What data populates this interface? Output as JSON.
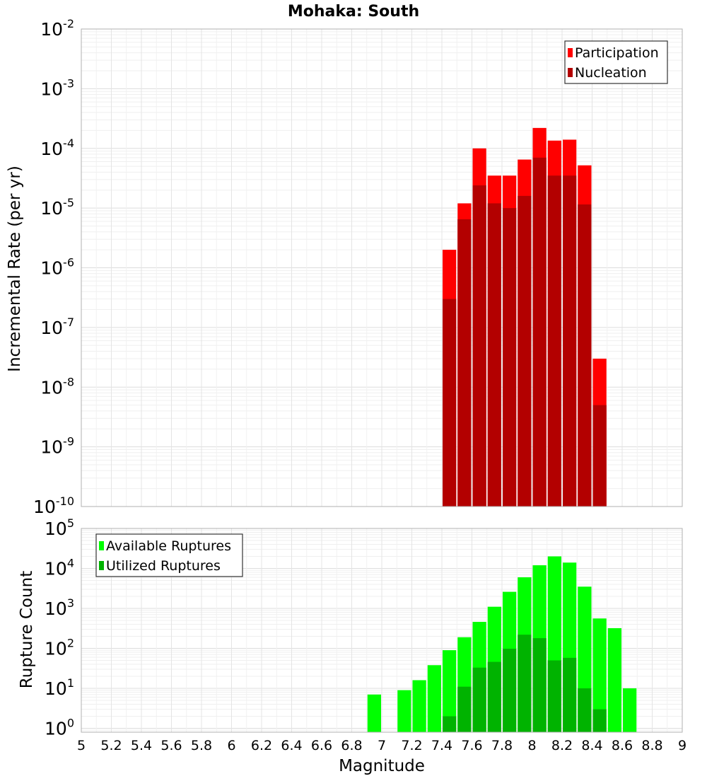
{
  "chart_data": [
    {
      "type": "bar",
      "title": "Mohaka: South",
      "xlabel": "",
      "ylabel": "Incremental Rate (per yr)",
      "yscale": "log",
      "xlim": [
        5,
        9
      ],
      "ylim": [
        1e-10,
        0.01
      ],
      "y_tick_exponents": [
        -10,
        -9,
        -8,
        -7,
        -6,
        -5,
        -4,
        -3,
        -2
      ],
      "grid": true,
      "legend_position": "top-right",
      "bin_width": 0.1,
      "series": [
        {
          "name": "Participation",
          "color": "#ff0000",
          "x": [
            7.45,
            7.55,
            7.65,
            7.75,
            7.85,
            7.95,
            8.05,
            8.15,
            8.25,
            8.35,
            8.45
          ],
          "values": [
            2e-06,
            1.2e-05,
            0.0001,
            3.5e-05,
            3.5e-05,
            6.5e-05,
            0.00022,
            0.000135,
            0.00014,
            5.2e-05,
            3e-08
          ]
        },
        {
          "name": "Nucleation",
          "color": "#b30000",
          "x": [
            7.45,
            7.55,
            7.65,
            7.75,
            7.85,
            7.95,
            8.05,
            8.15,
            8.25,
            8.35,
            8.45
          ],
          "values": [
            3e-07,
            6.5e-06,
            2.4e-05,
            1.2e-05,
            1e-05,
            1.6e-05,
            7e-05,
            3.5e-05,
            3.5e-05,
            1.15e-05,
            5e-09
          ]
        }
      ]
    },
    {
      "type": "bar",
      "title": "",
      "xlabel": "Magnitude",
      "ylabel": "Rupture Count",
      "yscale": "log",
      "xlim": [
        5,
        9
      ],
      "ylim": [
        0.8,
        100000.0
      ],
      "x_ticks": [
        "5",
        "5.2",
        "5.4",
        "5.6",
        "5.8",
        "6",
        "6.2",
        "6.4",
        "6.6",
        "6.8",
        "7",
        "7.2",
        "7.4",
        "7.6",
        "7.8",
        "8",
        "8.2",
        "8.4",
        "8.6",
        "8.8",
        "9"
      ],
      "y_tick_exponents": [
        0,
        1,
        2,
        3,
        4,
        5
      ],
      "grid": true,
      "legend_position": "top-left",
      "bin_width": 0.1,
      "series": [
        {
          "name": "Available Ruptures",
          "color": "#00ff00",
          "x": [
            6.95,
            7.15,
            7.25,
            7.35,
            7.45,
            7.55,
            7.65,
            7.75,
            7.85,
            7.95,
            8.05,
            8.15,
            8.25,
            8.35,
            8.45,
            8.55,
            8.65
          ],
          "values": [
            7,
            9,
            16,
            38,
            90,
            190,
            460,
            1100,
            2600,
            6000,
            12000,
            20000,
            14000,
            3500,
            560,
            320,
            10
          ]
        },
        {
          "name": "Utilized Ruptures",
          "color": "#00b300",
          "x": [
            7.45,
            7.55,
            7.65,
            7.75,
            7.85,
            7.95,
            8.05,
            8.15,
            8.25,
            8.35,
            8.45
          ],
          "values": [
            2,
            11,
            33,
            46,
            98,
            220,
            180,
            50,
            58,
            10,
            3
          ]
        }
      ]
    }
  ]
}
